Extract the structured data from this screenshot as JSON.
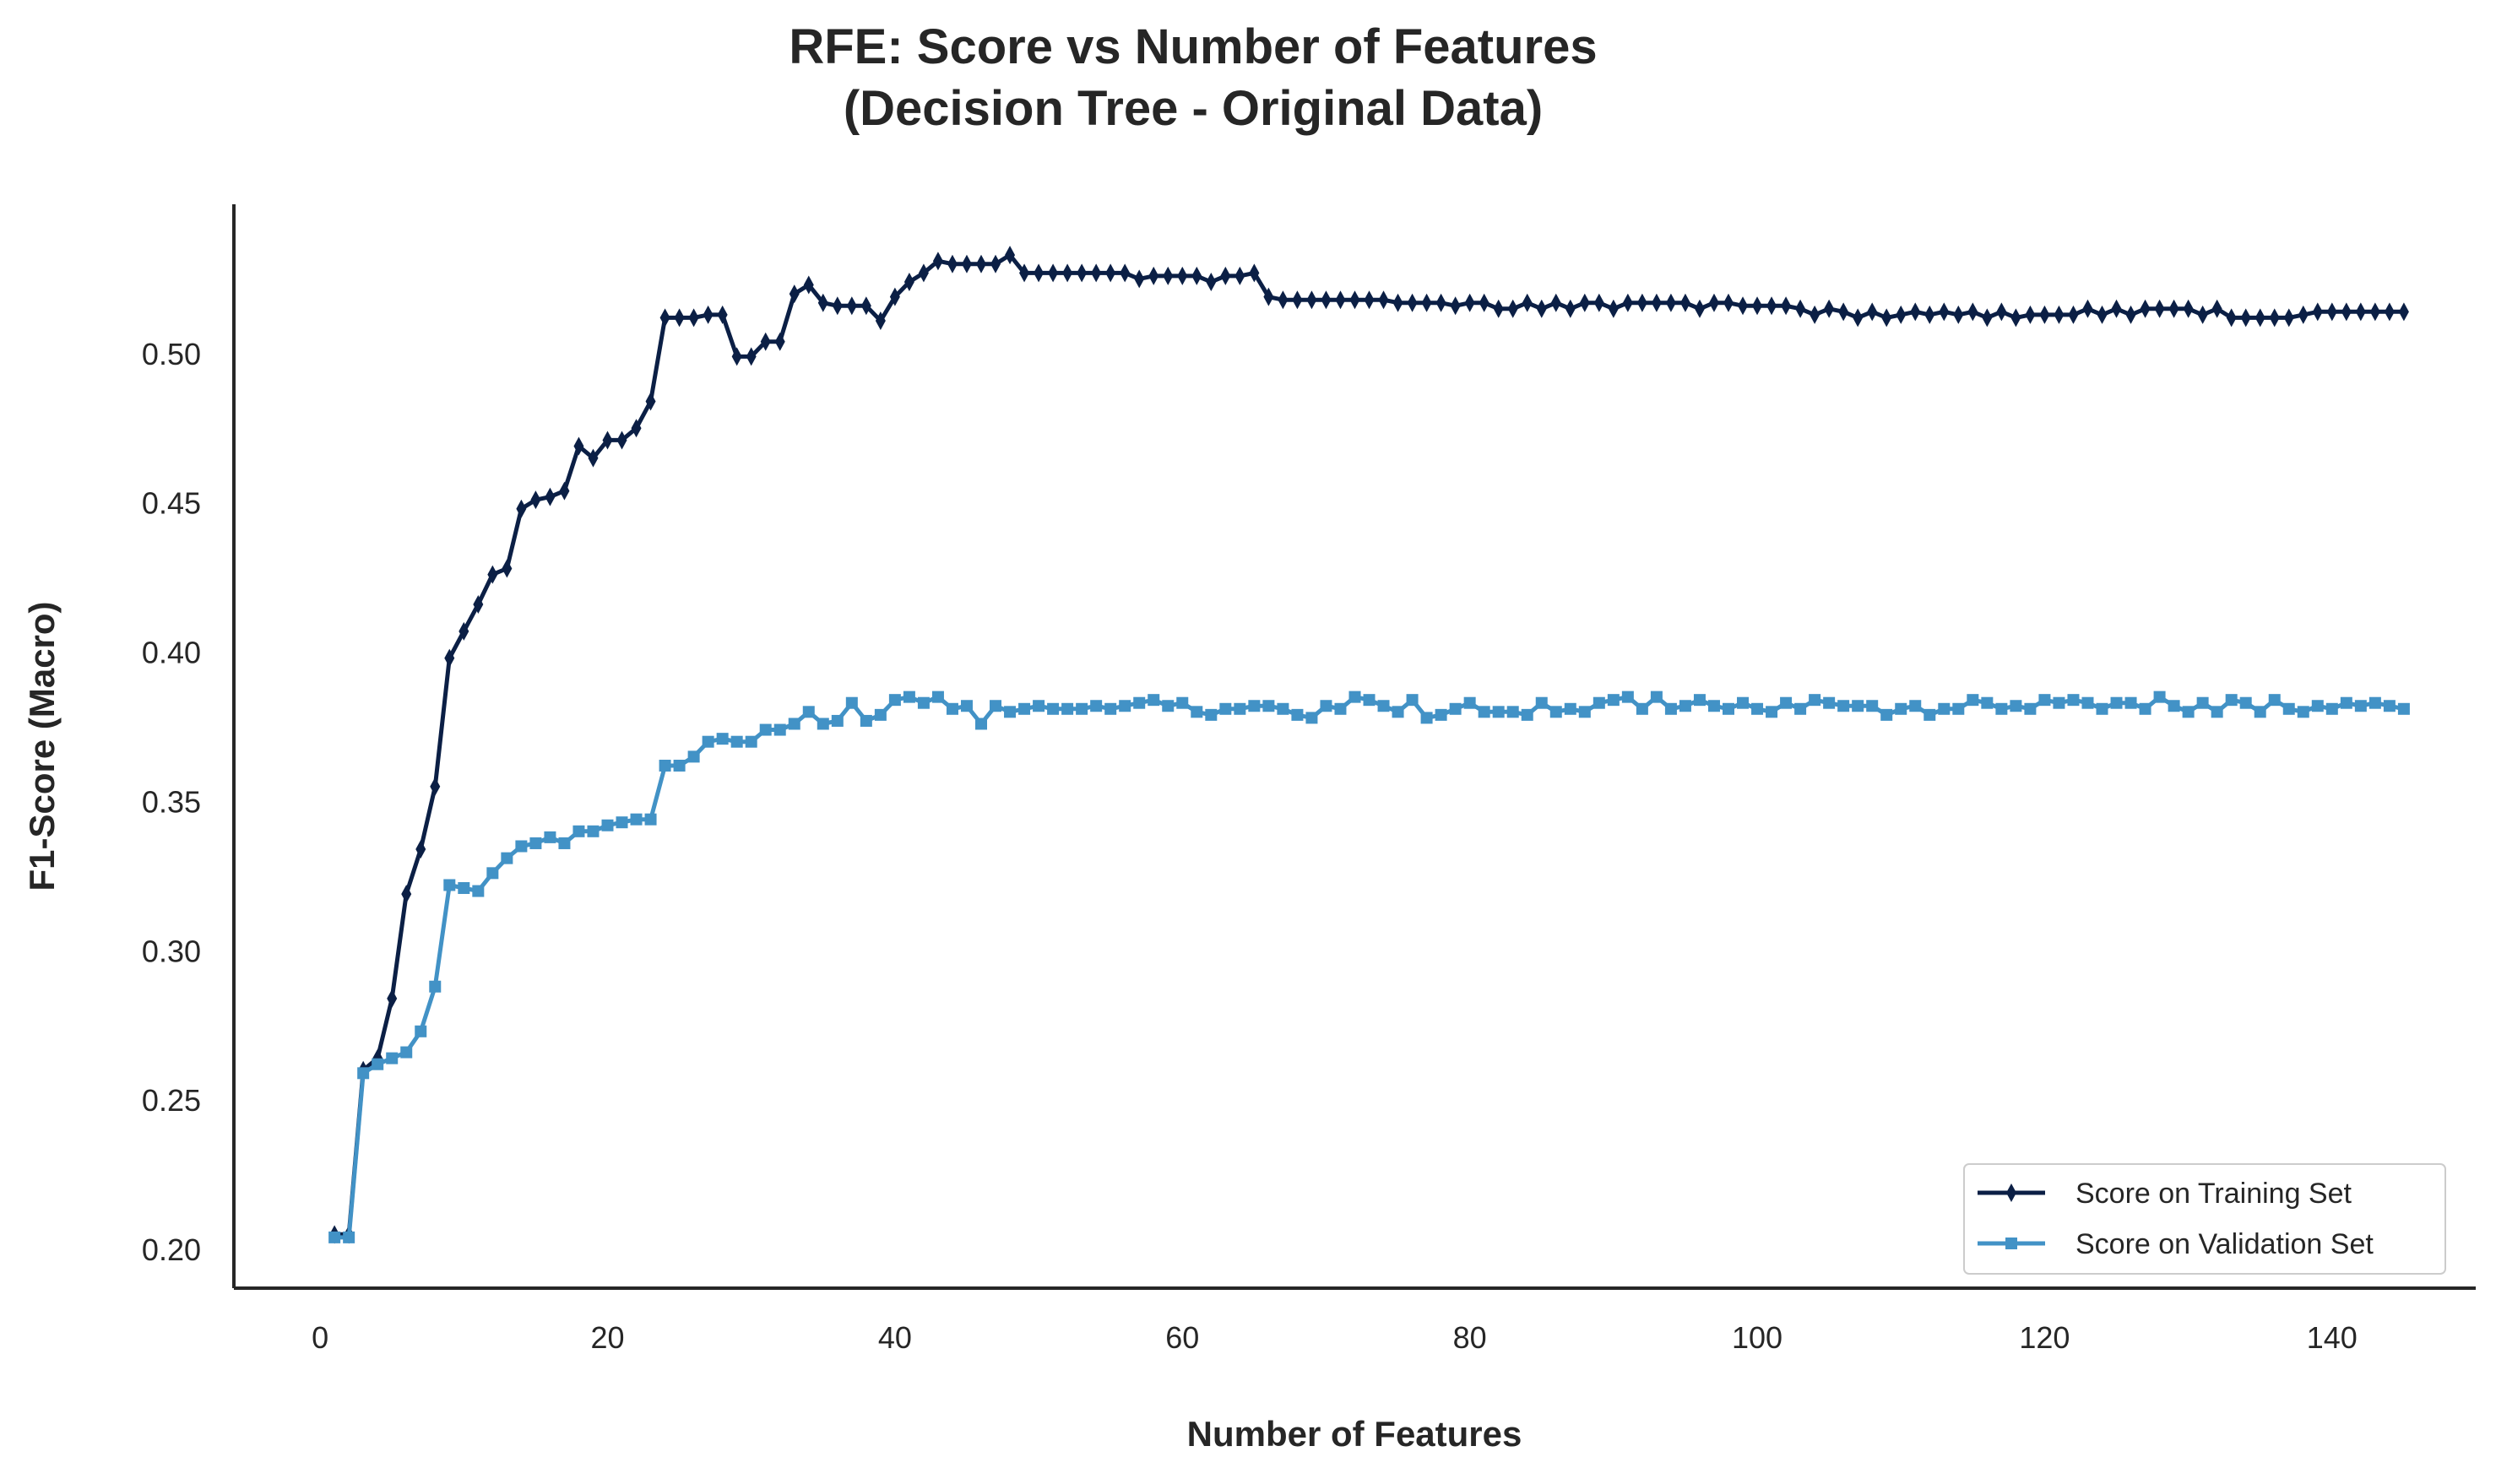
{
  "chart_data": {
    "type": "line",
    "title": [
      "RFE: Score vs Number of Features",
      "(Decision Tree - Original Data)"
    ],
    "xlabel": "Number of Features",
    "ylabel": "F1-Score (Macro)",
    "xlim": [
      -6,
      150
    ],
    "ylim": [
      0.187,
      0.55
    ],
    "xticks": [
      0,
      20,
      40,
      60,
      80,
      100,
      120,
      140
    ],
    "yticks": [
      0.2,
      0.25,
      0.3,
      0.35,
      0.4,
      0.45,
      0.5
    ],
    "xtick_labels": [
      "0",
      "20",
      "40",
      "60",
      "80",
      "100",
      "120",
      "140"
    ],
    "ytick_labels": [
      "0.20",
      "0.25",
      "0.30",
      "0.35",
      "0.40",
      "0.45",
      "0.50"
    ],
    "grid": false,
    "legend_position": "lower-right",
    "series": [
      {
        "name": "Score on Training Set",
        "color": "#0b1f45",
        "marker": "thin-diamond",
        "x": [
          1,
          2,
          3,
          4,
          5,
          6,
          7,
          8,
          9,
          10,
          11,
          12,
          13,
          14,
          15,
          16,
          17,
          18,
          19,
          20,
          21,
          22,
          23,
          24,
          25,
          26,
          27,
          28,
          29,
          30,
          31,
          32,
          33,
          34,
          35,
          36,
          37,
          38,
          39,
          40,
          41,
          42,
          43,
          44,
          45,
          46,
          47,
          48,
          49,
          50,
          51,
          52,
          53,
          54,
          55,
          56,
          57,
          58,
          59,
          60,
          61,
          62,
          63,
          64,
          65,
          66,
          67,
          68,
          69,
          70,
          71,
          72,
          73,
          74,
          75,
          76,
          77,
          78,
          79,
          80,
          81,
          82,
          83,
          84,
          85,
          86,
          87,
          88,
          89,
          90,
          91,
          92,
          93,
          94,
          95,
          96,
          97,
          98,
          99,
          100,
          101,
          102,
          103,
          104,
          105,
          106,
          107,
          108,
          109,
          110,
          111,
          112,
          113,
          114,
          115,
          116,
          117,
          118,
          119,
          120,
          121,
          122,
          123,
          124,
          125,
          126,
          127,
          128,
          129,
          130,
          131,
          132,
          133,
          134,
          135,
          136,
          137,
          138,
          139,
          140,
          141,
          142,
          143,
          144,
          145
        ],
        "y": [
          0.205,
          0.205,
          0.26,
          0.264,
          0.284,
          0.319,
          0.334,
          0.355,
          0.398,
          0.407,
          0.416,
          0.426,
          0.428,
          0.448,
          0.451,
          0.452,
          0.454,
          0.469,
          0.465,
          0.471,
          0.471,
          0.475,
          0.484,
          0.512,
          0.512,
          0.512,
          0.513,
          0.513,
          0.499,
          0.499,
          0.504,
          0.504,
          0.52,
          0.523,
          0.517,
          0.516,
          0.516,
          0.516,
          0.511,
          0.519,
          0.524,
          0.527,
          0.531,
          0.53,
          0.53,
          0.53,
          0.53,
          0.533,
          0.527,
          0.527,
          0.527,
          0.527,
          0.527,
          0.527,
          0.527,
          0.527,
          0.525,
          0.526,
          0.526,
          0.526,
          0.526,
          0.524,
          0.526,
          0.526,
          0.527,
          0.519,
          0.518,
          0.518,
          0.518,
          0.518,
          0.518,
          0.518,
          0.518,
          0.518,
          0.517,
          0.517,
          0.517,
          0.517,
          0.516,
          0.517,
          0.517,
          0.515,
          0.515,
          0.517,
          0.515,
          0.517,
          0.515,
          0.517,
          0.517,
          0.515,
          0.517,
          0.517,
          0.517,
          0.517,
          0.517,
          0.515,
          0.517,
          0.517,
          0.516,
          0.516,
          0.516,
          0.516,
          0.515,
          0.513,
          0.515,
          0.514,
          0.512,
          0.514,
          0.512,
          0.513,
          0.514,
          0.513,
          0.514,
          0.513,
          0.514,
          0.512,
          0.514,
          0.512,
          0.513,
          0.513,
          0.513,
          0.513,
          0.515,
          0.513,
          0.515,
          0.513,
          0.515,
          0.515,
          0.515,
          0.515,
          0.513,
          0.515,
          0.512,
          0.512,
          0.512,
          0.512,
          0.512,
          0.513,
          0.514,
          0.514,
          0.514,
          0.514,
          0.514,
          0.514,
          0.514
        ]
      },
      {
        "name": "Score on Validation Set",
        "color": "#4292c6",
        "marker": "square",
        "x": [
          1,
          2,
          3,
          4,
          5,
          6,
          7,
          8,
          9,
          10,
          11,
          12,
          13,
          14,
          15,
          16,
          17,
          18,
          19,
          20,
          21,
          22,
          23,
          24,
          25,
          26,
          27,
          28,
          29,
          30,
          31,
          32,
          33,
          34,
          35,
          36,
          37,
          38,
          39,
          40,
          41,
          42,
          43,
          44,
          45,
          46,
          47,
          48,
          49,
          50,
          51,
          52,
          53,
          54,
          55,
          56,
          57,
          58,
          59,
          60,
          61,
          62,
          63,
          64,
          65,
          66,
          67,
          68,
          69,
          70,
          71,
          72,
          73,
          74,
          75,
          76,
          77,
          78,
          79,
          80,
          81,
          82,
          83,
          84,
          85,
          86,
          87,
          88,
          89,
          90,
          91,
          92,
          93,
          94,
          95,
          96,
          97,
          98,
          99,
          100,
          101,
          102,
          103,
          104,
          105,
          106,
          107,
          108,
          109,
          110,
          111,
          112,
          113,
          114,
          115,
          116,
          117,
          118,
          119,
          120,
          121,
          122,
          123,
          124,
          125,
          126,
          127,
          128,
          129,
          130,
          131,
          132,
          133,
          134,
          135,
          136,
          137,
          138,
          139,
          140,
          141,
          142,
          143,
          144,
          145
        ],
        "y": [
          0.204,
          0.204,
          0.259,
          0.262,
          0.264,
          0.266,
          0.273,
          0.288,
          0.322,
          0.321,
          0.32,
          0.326,
          0.331,
          0.335,
          0.336,
          0.338,
          0.336,
          0.34,
          0.34,
          0.342,
          0.343,
          0.344,
          0.344,
          0.362,
          0.362,
          0.365,
          0.37,
          0.371,
          0.37,
          0.37,
          0.374,
          0.374,
          0.376,
          0.38,
          0.376,
          0.377,
          0.383,
          0.377,
          0.379,
          0.384,
          0.385,
          0.383,
          0.385,
          0.381,
          0.382,
          0.376,
          0.382,
          0.38,
          0.381,
          0.382,
          0.381,
          0.381,
          0.381,
          0.382,
          0.381,
          0.382,
          0.383,
          0.384,
          0.382,
          0.383,
          0.38,
          0.379,
          0.381,
          0.381,
          0.382,
          0.382,
          0.381,
          0.379,
          0.378,
          0.382,
          0.381,
          0.385,
          0.384,
          0.382,
          0.38,
          0.384,
          0.378,
          0.379,
          0.381,
          0.383,
          0.38,
          0.38,
          0.38,
          0.379,
          0.383,
          0.38,
          0.381,
          0.38,
          0.383,
          0.384,
          0.385,
          0.381,
          0.385,
          0.381,
          0.382,
          0.384,
          0.382,
          0.381,
          0.383,
          0.381,
          0.38,
          0.383,
          0.381,
          0.384,
          0.383,
          0.382,
          0.382,
          0.382,
          0.379,
          0.381,
          0.382,
          0.379,
          0.381,
          0.381,
          0.384,
          0.383,
          0.381,
          0.382,
          0.381,
          0.384,
          0.383,
          0.384,
          0.383,
          0.381,
          0.383,
          0.383,
          0.381,
          0.385,
          0.382,
          0.38,
          0.383,
          0.38,
          0.384,
          0.383,
          0.38,
          0.384,
          0.381,
          0.38,
          0.382,
          0.381,
          0.383,
          0.382,
          0.383,
          0.382,
          0.381
        ]
      }
    ]
  }
}
